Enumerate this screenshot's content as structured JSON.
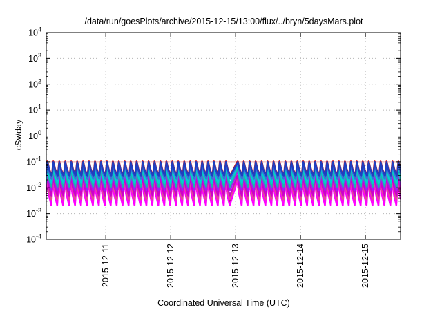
{
  "chart_data": {
    "type": "line",
    "title": "/data/run/goesPlots/archive/2015-12-15/13:00/flux/../bryn/5daysMars.plot",
    "xlabel": "Coordinated Universal Time (UTC)",
    "ylabel": "cSv/day",
    "y_scale": "log",
    "ylim": [
      0.0001,
      10000
    ],
    "y_ticks": [
      {
        "mant": "10",
        "exp": "-4"
      },
      {
        "mant": "10",
        "exp": "-3"
      },
      {
        "mant": "10",
        "exp": "-2"
      },
      {
        "mant": "10",
        "exp": "-1"
      },
      {
        "mant": "10",
        "exp": "0"
      },
      {
        "mant": "10",
        "exp": "1"
      },
      {
        "mant": "10",
        "exp": "2"
      },
      {
        "mant": "10",
        "exp": "3"
      },
      {
        "mant": "10",
        "exp": "4"
      }
    ],
    "xlim": [
      "2015-12-10 02:00",
      "2015-12-15 13:00"
    ],
    "x_ticks": [
      "2015-12-11",
      "2015-12-12",
      "2015-12-13",
      "2015-12-14",
      "2015-12-15"
    ],
    "grid": true,
    "legend": "none",
    "reference_line": {
      "y": 0.1,
      "color": "#f2b0b0"
    },
    "sawtooth_period_hours": 2.2,
    "series": [
      {
        "color": "#8b0a4a",
        "peak": 0.02,
        "trough": 0.0025
      },
      {
        "color": "#ff00ff",
        "peak": 0.018,
        "trough": 0.0021
      },
      {
        "color": "#e05090",
        "peak": 0.026,
        "trough": 0.0035
      },
      {
        "color": "#cc00cc",
        "peak": 0.03,
        "trough": 0.005
      },
      {
        "color": "#a020f0",
        "peak": 0.045,
        "trough": 0.008
      },
      {
        "color": "#20b2aa",
        "peak": 0.055,
        "trough": 0.011
      },
      {
        "color": "#00ced1",
        "peak": 0.07,
        "trough": 0.015
      },
      {
        "color": "#3b6fd8",
        "peak": 0.085,
        "trough": 0.022
      },
      {
        "color": "#d01010",
        "peak": 0.11,
        "trough": 0.03
      },
      {
        "color": "#1f3fc0",
        "peak": 0.098,
        "trough": 0.028
      }
    ]
  }
}
